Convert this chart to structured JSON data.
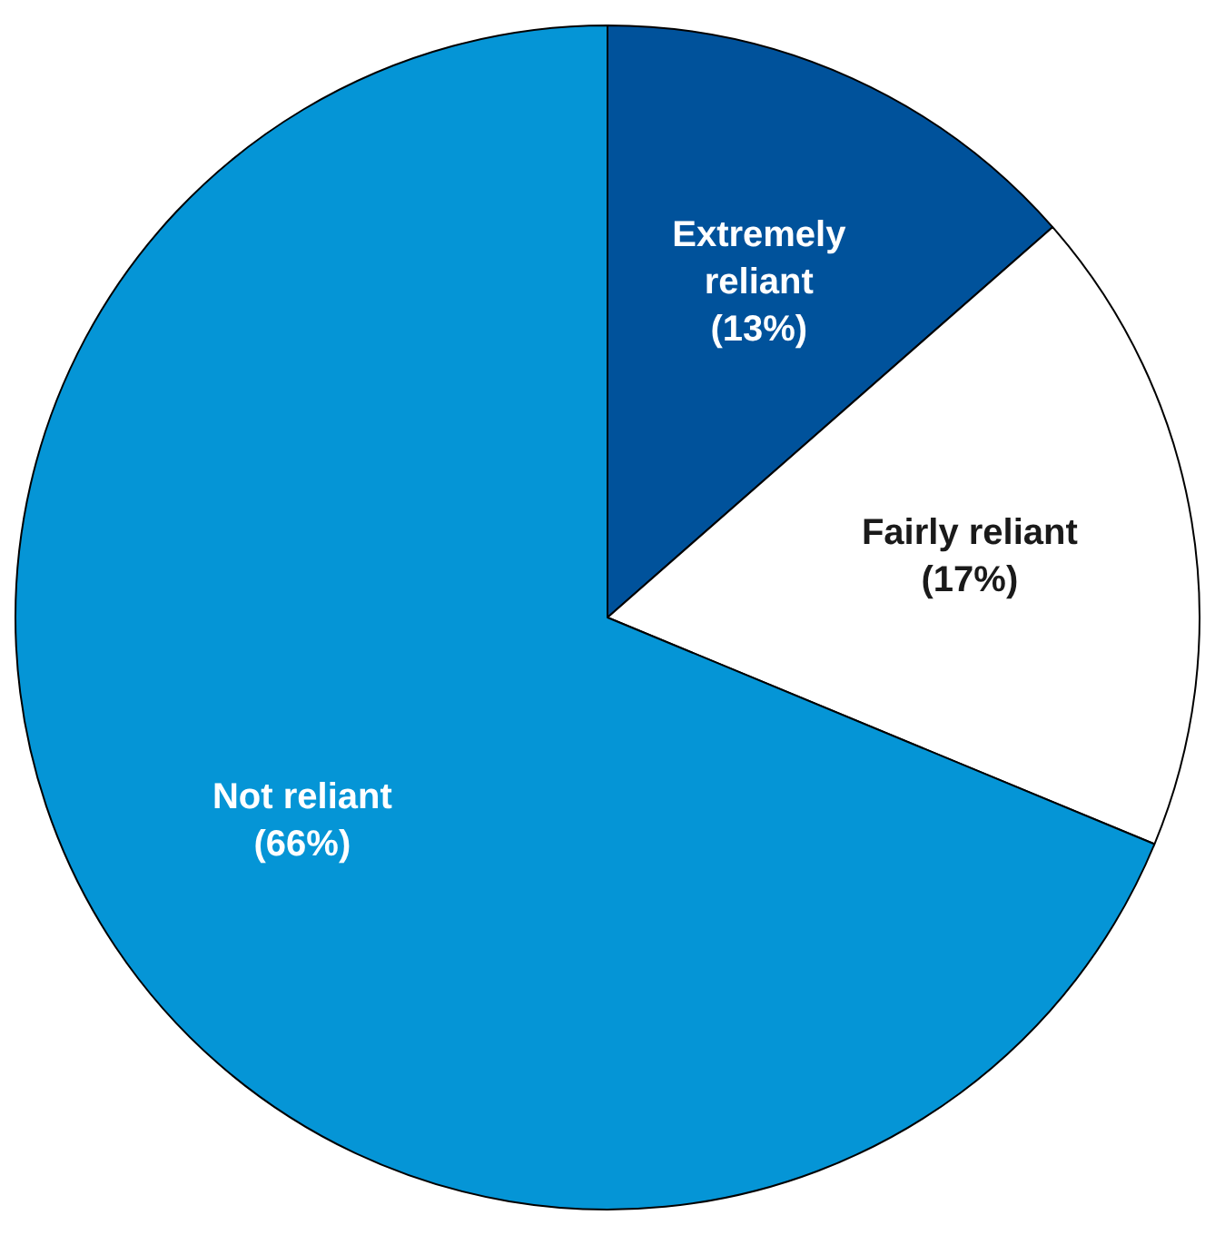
{
  "chart_data": {
    "type": "pie",
    "categories": [
      "Extremely reliant",
      "Fairly reliant",
      "Not reliant"
    ],
    "values": [
      13,
      17,
      66
    ],
    "colors": [
      "#00529b",
      "#ffffff",
      "#0595d6"
    ],
    "value_labels": [
      "(13%)",
      "(17%)",
      "(66%)"
    ],
    "legend": false
  }
}
